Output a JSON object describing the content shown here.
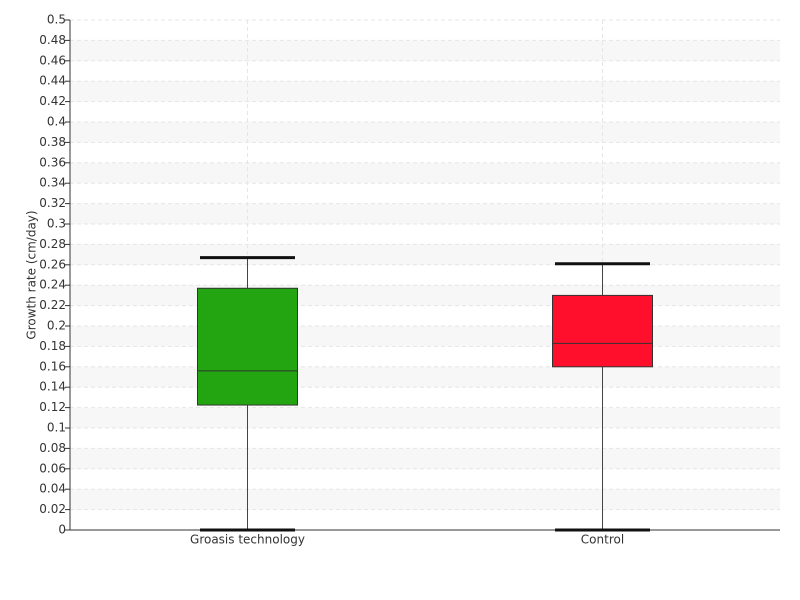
{
  "chart_data": {
    "type": "box",
    "y_label": "Growth rate (cm/day)",
    "categories": [
      "Groasis technology",
      "Control"
    ],
    "boxes": [
      {
        "min": 0,
        "q1": 0.1225,
        "median": 0.156,
        "q3": 0.237,
        "max": 0.267,
        "color": "#22a511"
      },
      {
        "min": 0,
        "q1": 0.16,
        "median": 0.183,
        "q3": 0.23,
        "max": 0.261,
        "color": "#ff0f2b"
      }
    ],
    "ylim": [
      0,
      0.5
    ],
    "yticks": [
      0,
      0.02,
      0.04,
      0.06,
      0.08,
      0.1,
      0.12,
      0.14,
      0.16,
      0.18,
      0.2,
      0.22,
      0.24,
      0.26,
      0.28,
      0.3,
      0.32,
      0.34,
      0.36,
      0.38,
      0.4,
      0.42,
      0.44,
      0.46,
      0.48,
      0.5
    ],
    "grid": true
  }
}
